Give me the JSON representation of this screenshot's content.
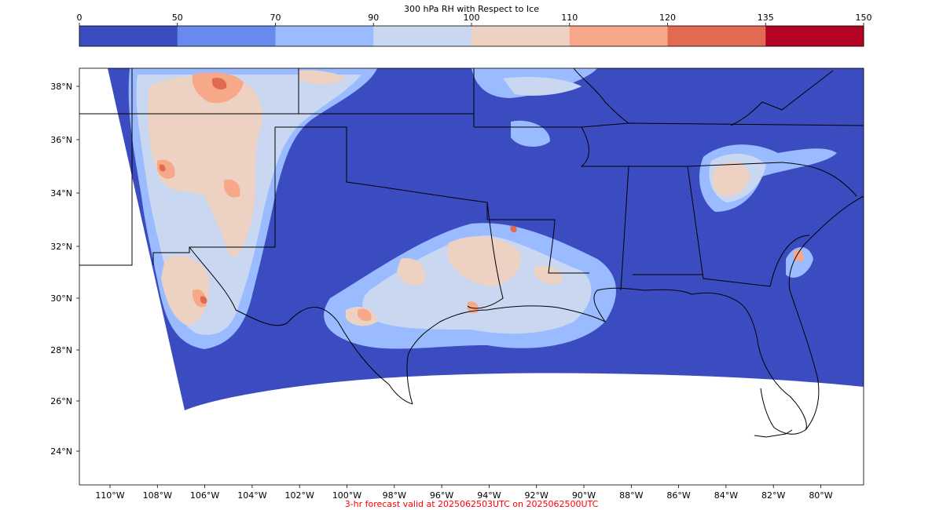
{
  "colorbar": {
    "title": "300 hPa RH with Respect to Ice",
    "ticks": [
      "0",
      "50",
      "70",
      "90",
      "100",
      "110",
      "120",
      "135",
      "150"
    ],
    "colors": [
      "#3b4cc0",
      "#6889ee",
      "#9abbff",
      "#c9d7f0",
      "#edd1c2",
      "#f7a889",
      "#e26952",
      "#b40426"
    ]
  },
  "map": {
    "lat_labels": [
      "38°N",
      "36°N",
      "34°N",
      "32°N",
      "30°N",
      "28°N",
      "26°N",
      "24°N"
    ],
    "lon_labels": [
      "110°W",
      "108°W",
      "106°W",
      "104°W",
      "102°W",
      "100°W",
      "98°W",
      "96°W",
      "94°W",
      "92°W",
      "90°W",
      "88°W",
      "86°W",
      "84°W",
      "82°W",
      "80°W"
    ],
    "background_color": "#3b4cc0",
    "outside_color": "#ffffff"
  },
  "footer": {
    "text": "3-hr forecast valid at 2025062503UTC on 2025062500UTC",
    "color": "#ff0000"
  }
}
